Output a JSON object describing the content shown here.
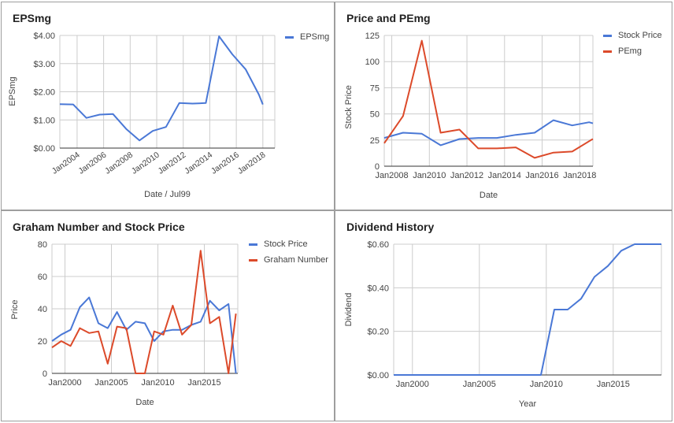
{
  "colors": {
    "blue": "#4a78d6",
    "red": "#dc4a2a",
    "grid": "#cccccc",
    "baseline": "#333333",
    "text": "#444444"
  },
  "chart_data": [
    {
      "id": "eps",
      "type": "line",
      "title": "EPSmg",
      "xlabel": "Date / Jul99",
      "ylabel": "EPSmg",
      "xlim": [
        2002.7,
        2018.9
      ],
      "ylim": [
        0,
        4
      ],
      "yticks": [
        0,
        1,
        2,
        3,
        4
      ],
      "yticklabels": [
        "$0.00",
        "$1.00",
        "$2.00",
        "$3.00",
        "$4.00"
      ],
      "xticks": [
        2004,
        2006,
        2008,
        2010,
        2012,
        2014,
        2016,
        2018
      ],
      "xticklabels": [
        "Jan2004",
        "Jan2006",
        "Jan2008",
        "Jan2010",
        "Jan2012",
        "Jan2014",
        "Jan2016",
        "Jan2018"
      ],
      "x_tick_rotate": true,
      "legend": [
        "EPSmg"
      ],
      "series": [
        {
          "name": "EPSmg",
          "color": "blue",
          "points": [
            [
              2002.7,
              1.56
            ],
            [
              2003.7,
              1.55
            ],
            [
              2004.7,
              1.07
            ],
            [
              2005.7,
              1.19
            ],
            [
              2006.7,
              1.21
            ],
            [
              2007.7,
              0.68
            ],
            [
              2008.7,
              0.27
            ],
            [
              2009.7,
              0.61
            ],
            [
              2010.7,
              0.75
            ],
            [
              2011.7,
              1.6
            ],
            [
              2012.7,
              1.58
            ],
            [
              2013.7,
              1.6
            ],
            [
              2014.7,
              3.97
            ],
            [
              2015.7,
              3.33
            ],
            [
              2016.7,
              2.8
            ],
            [
              2017.7,
              1.9
            ],
            [
              2018.0,
              1.55
            ]
          ]
        }
      ]
    },
    {
      "id": "price-pe",
      "type": "line",
      "title": "Price and PEmg",
      "xlabel": "Date",
      "ylabel": "Stock Price",
      "xlim": [
        2007.6,
        2018.7
      ],
      "ylim": [
        0,
        125
      ],
      "yticks": [
        0,
        25,
        50,
        75,
        100,
        125
      ],
      "yticklabels": [
        "0",
        "25",
        "50",
        "75",
        "100",
        "125"
      ],
      "xticks": [
        2008,
        2010,
        2012,
        2014,
        2016,
        2018
      ],
      "xticklabels": [
        "Jan2008",
        "Jan2010",
        "Jan2012",
        "Jan2014",
        "Jan2016",
        "Jan2018"
      ],
      "x_tick_rotate": false,
      "legend": [
        "Stock Price",
        "PEmg"
      ],
      "series": [
        {
          "name": "Stock Price",
          "color": "blue",
          "points": [
            [
              2007.6,
              27
            ],
            [
              2008.6,
              32
            ],
            [
              2009.6,
              31
            ],
            [
              2010.6,
              20
            ],
            [
              2011.6,
              26
            ],
            [
              2012.6,
              27
            ],
            [
              2013.6,
              27
            ],
            [
              2014.6,
              30
            ],
            [
              2015.6,
              32
            ],
            [
              2016.6,
              44
            ],
            [
              2017.6,
              39
            ],
            [
              2018.5,
              42
            ],
            [
              2018.7,
              41
            ]
          ]
        },
        {
          "name": "PEmg",
          "color": "red",
          "points": [
            [
              2007.6,
              22
            ],
            [
              2008.6,
              48
            ],
            [
              2009.6,
              120
            ],
            [
              2010.6,
              32
            ],
            [
              2011.6,
              35
            ],
            [
              2012.6,
              17
            ],
            [
              2013.6,
              17
            ],
            [
              2014.6,
              18
            ],
            [
              2015.6,
              8
            ],
            [
              2016.6,
              13
            ],
            [
              2017.6,
              14
            ],
            [
              2018.6,
              25
            ],
            [
              2018.7,
              26
            ]
          ]
        }
      ]
    },
    {
      "id": "graham",
      "type": "line",
      "title": "Graham Number and Stock Price",
      "xlabel": "Date",
      "ylabel": "Price",
      "xlim": [
        1998.6,
        2018.6
      ],
      "ylim": [
        0,
        80
      ],
      "yticks": [
        0,
        20,
        40,
        60,
        80
      ],
      "yticklabels": [
        "0",
        "20",
        "40",
        "60",
        "80"
      ],
      "xticks": [
        2000,
        2005,
        2010,
        2015
      ],
      "xticklabels": [
        "Jan2000",
        "Jan2005",
        "Jan2010",
        "Jan2015"
      ],
      "x_tick_rotate": false,
      "legend": [
        "Stock Price",
        "Graham Number"
      ],
      "series": [
        {
          "name": "Stock Price",
          "color": "blue",
          "points": [
            [
              1998.6,
              20
            ],
            [
              1999.6,
              24
            ],
            [
              2000.6,
              27
            ],
            [
              2001.6,
              41
            ],
            [
              2002.6,
              47
            ],
            [
              2003.6,
              31
            ],
            [
              2004.6,
              28
            ],
            [
              2005.6,
              38
            ],
            [
              2006.6,
              27
            ],
            [
              2007.6,
              32
            ],
            [
              2008.6,
              31
            ],
            [
              2009.6,
              20
            ],
            [
              2010.6,
              26
            ],
            [
              2011.6,
              27
            ],
            [
              2012.6,
              27
            ],
            [
              2013.6,
              30
            ],
            [
              2014.6,
              32
            ],
            [
              2015.6,
              45
            ],
            [
              2016.6,
              39
            ],
            [
              2017.6,
              43
            ],
            [
              2018.4,
              0
            ]
          ]
        },
        {
          "name": "Graham Number",
          "color": "red",
          "points": [
            [
              1998.6,
              16
            ],
            [
              1999.6,
              20
            ],
            [
              2000.6,
              17
            ],
            [
              2001.6,
              28
            ],
            [
              2002.6,
              25
            ],
            [
              2003.6,
              26
            ],
            [
              2004.6,
              6
            ],
            [
              2005.6,
              29
            ],
            [
              2006.6,
              28
            ],
            [
              2007.6,
              0
            ],
            [
              2008.6,
              0
            ],
            [
              2009.6,
              26
            ],
            [
              2010.6,
              24
            ],
            [
              2011.6,
              42
            ],
            [
              2012.6,
              24
            ],
            [
              2013.6,
              30
            ],
            [
              2014.6,
              76
            ],
            [
              2015.6,
              31
            ],
            [
              2016.6,
              35
            ],
            [
              2017.6,
              0
            ],
            [
              2018.4,
              37
            ]
          ]
        }
      ]
    },
    {
      "id": "dividend",
      "type": "line",
      "title": "Dividend History",
      "xlabel": "Year",
      "ylabel": "Dividend",
      "xlim": [
        1998.6,
        2018.6
      ],
      "ylim": [
        0,
        0.6
      ],
      "yticks": [
        0,
        0.2,
        0.4,
        0.6
      ],
      "yticklabels": [
        "$0.00",
        "$0.20",
        "$0.40",
        "$0.60"
      ],
      "xticks": [
        2000,
        2005,
        2010,
        2015
      ],
      "xticklabels": [
        "Jan2000",
        "Jan2005",
        "Jan2010",
        "Jan2015"
      ],
      "x_tick_rotate": false,
      "legend": [],
      "series": [
        {
          "name": "",
          "color": "blue",
          "points": [
            [
              1998.6,
              0
            ],
            [
              2008.6,
              0
            ],
            [
              2009.6,
              0
            ],
            [
              2010.6,
              0.3
            ],
            [
              2011.6,
              0.3
            ],
            [
              2012.6,
              0.35
            ],
            [
              2013.6,
              0.45
            ],
            [
              2014.6,
              0.5
            ],
            [
              2015.6,
              0.57
            ],
            [
              2016.6,
              0.6
            ],
            [
              2017.6,
              0.6
            ],
            [
              2018.6,
              0.6
            ]
          ]
        }
      ]
    }
  ]
}
